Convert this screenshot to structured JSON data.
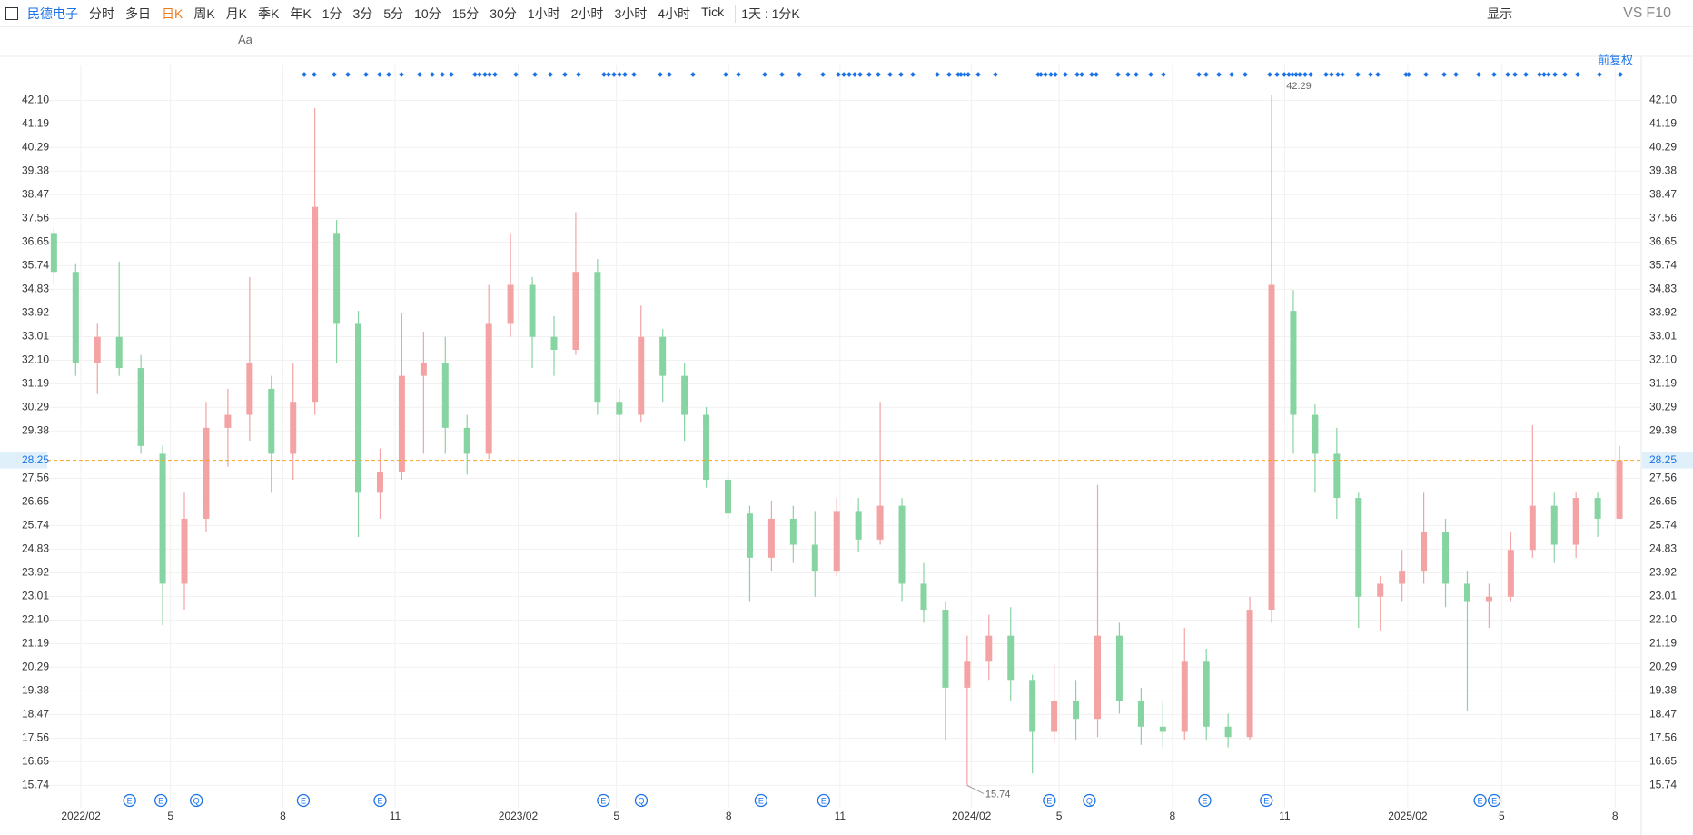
{
  "toolbar": {
    "symbol": "民德电子",
    "tabs": [
      "分时",
      "多日",
      "日K",
      "周K",
      "月K",
      "季K",
      "年K",
      "1分",
      "3分",
      "5分",
      "10分",
      "15分",
      "30分",
      "1小时",
      "2小时",
      "3小时",
      "4小时",
      "Tick"
    ],
    "active_tab": 2,
    "period_selector": "1天 : 1分K",
    "display": "显示",
    "vs": "VS",
    "f10": "F10"
  },
  "drawing_tools": {
    "text_tool": "Aa"
  },
  "chart_data": {
    "type": "candlestick",
    "adjustment": "前复权",
    "categories": [
      null,
      null,
      null,
      null,
      null,
      null,
      null,
      null,
      null,
      null,
      null,
      null,
      null,
      null,
      null,
      null,
      null,
      null,
      null,
      null,
      null,
      null,
      null,
      null,
      null,
      null,
      null,
      null,
      null,
      null,
      null,
      null,
      null,
      null,
      null,
      null,
      null,
      null,
      null,
      null,
      null,
      null,
      null,
      null,
      null,
      null,
      null,
      null,
      null,
      null,
      null,
      null,
      null,
      null,
      null,
      null,
      null,
      null,
      null,
      null,
      null,
      null,
      null,
      null,
      null,
      null,
      null,
      null,
      null,
      null,
      null,
      null,
      null
    ],
    "open": [
      37,
      35.5,
      32,
      33,
      31.8,
      28.5,
      23.5,
      26,
      29.5,
      30,
      31,
      28.5,
      30.5,
      37,
      33.5,
      27,
      27.8,
      31.5,
      32,
      29.5,
      28.5,
      33.5,
      35,
      33,
      32.5,
      35.5,
      30.5,
      30,
      33,
      31.5,
      30,
      27.5,
      26.2,
      24.5,
      26,
      25,
      24,
      26.3,
      25.2,
      26.5,
      23.5,
      22.5,
      19.5,
      20.5,
      21.5,
      19.8,
      17.8,
      19,
      18.3,
      21.5,
      19,
      18,
      17.8,
      20.5,
      18,
      17.6,
      22.5,
      34,
      30,
      28.5,
      26.8,
      23,
      23.5,
      24,
      25.5,
      23.5,
      22.8,
      23,
      24.8,
      26.5,
      25,
      26.8,
      26
    ],
    "high": [
      37.2,
      35.8,
      33.5,
      35.9,
      32.3,
      28.8,
      27,
      30.5,
      31,
      35.3,
      31.5,
      32,
      41.8,
      37.5,
      34,
      28.7,
      33.9,
      33.2,
      33,
      30,
      35,
      37,
      35.3,
      33.8,
      37.8,
      36,
      31,
      34.2,
      33.3,
      32,
      30.3,
      27.8,
      26.5,
      26.7,
      26.5,
      26.3,
      26.8,
      26.8,
      30.5,
      26.8,
      24.3,
      22.8,
      21.5,
      22.3,
      22.6,
      20,
      20.4,
      19.8,
      27.3,
      22,
      19.5,
      19,
      21.8,
      21,
      18.5,
      23,
      42.29,
      34.8,
      30.4,
      29.5,
      27,
      23.8,
      24.8,
      27,
      26,
      24,
      23.5,
      25.5,
      29.6,
      27,
      27,
      27,
      28.8
    ],
    "low": [
      35,
      31.5,
      30.8,
      31.5,
      28.5,
      21.9,
      22.5,
      25.5,
      28,
      29,
      27,
      27.5,
      30,
      32,
      25.3,
      26,
      27.5,
      28.5,
      28.5,
      27.7,
      28.3,
      33,
      31.8,
      31.5,
      32.3,
      30,
      28.2,
      29.7,
      30.5,
      29,
      27.2,
      26,
      22.8,
      24,
      24.3,
      23,
      23.8,
      24.7,
      25,
      22.8,
      22,
      17.5,
      15.74,
      19.8,
      19,
      16.2,
      17.4,
      17.5,
      17.6,
      18.5,
      17.3,
      17.2,
      17.5,
      17.5,
      17.2,
      17.5,
      22,
      28.5,
      27,
      26,
      21.8,
      21.7,
      22.8,
      23.5,
      22.6,
      18.6,
      21.8,
      22.8,
      24.5,
      24.3,
      24.5,
      25.3,
      26
    ],
    "close": [
      35.5,
      32,
      33,
      31.8,
      28.8,
      23.5,
      26,
      29.5,
      30,
      32,
      28.5,
      30.5,
      38,
      33.5,
      27,
      27.8,
      31.5,
      32,
      29.5,
      28.5,
      33.5,
      35,
      33,
      32.5,
      35.5,
      30.5,
      30,
      33,
      31.5,
      30,
      27.5,
      26.2,
      24.5,
      26,
      25,
      24,
      26.3,
      25.2,
      26.5,
      23.5,
      22.5,
      19.5,
      20.5,
      21.5,
      19.8,
      17.8,
      19,
      18.3,
      21.5,
      19,
      18,
      17.8,
      20.5,
      18,
      17.6,
      22.5,
      35,
      30,
      28.5,
      26.8,
      23,
      23.5,
      24,
      25.5,
      23.5,
      22.8,
      23,
      24.8,
      26.5,
      25,
      26.8,
      26,
      28.25
    ],
    "up_color": "#f3a3a3",
    "down_color": "#86d4a2",
    "last_price": 28.25,
    "last_price_color": "#f5a623",
    "ylim": [
      14.88,
      43.48
    ],
    "yticks": [
      15.74,
      16.65,
      17.56,
      18.47,
      19.38,
      20.29,
      21.19,
      {
        "value": 22.1,
        "label": "22.10"
      },
      23.01,
      23.92,
      24.83,
      25.74,
      26.65,
      27.56,
      29.38,
      30.29,
      31.19,
      {
        "value": 32.1,
        "label": "32.10"
      },
      33.01,
      33.92,
      34.83,
      35.74,
      36.65,
      37.56,
      38.47,
      39.38,
      40.29,
      41.19,
      {
        "value": 42.1,
        "label": "42.10"
      }
    ],
    "xlim": [
      -0.5,
      73
    ],
    "xticks": [
      {
        "value": 1.24,
        "label": "2022/02"
      },
      {
        "value": 5.36,
        "label": "5"
      },
      {
        "value": 10.53,
        "label": "8"
      },
      {
        "value": 15.69,
        "label": "11"
      },
      {
        "value": 21.35,
        "label": "2023/02"
      },
      {
        "value": 25.87,
        "label": "5"
      },
      {
        "value": 31.03,
        "label": "8"
      },
      {
        "value": 36.15,
        "label": "11"
      },
      {
        "value": 42.2,
        "label": "2024/02"
      },
      {
        "value": 46.23,
        "label": "5"
      },
      {
        "value": 51.44,
        "label": "8"
      },
      {
        "value": 56.6,
        "label": "11"
      },
      {
        "value": 62.26,
        "label": "2025/02"
      },
      {
        "value": 66.58,
        "label": "5"
      },
      {
        "value": 71.8,
        "label": "8"
      }
    ],
    "max_marker": 42.29,
    "min_marker": 15.74,
    "events": {
      "x": [
        3.48,
        4.92,
        6.55,
        11.47,
        15.0,
        25.27,
        27.01,
        32.52,
        35.4,
        45.78,
        47.62,
        52.93,
        55.76,
        65.59,
        66.24
      ],
      "labels": [
        "E",
        "E",
        "Q",
        "E",
        "E",
        "E",
        "Q",
        "E",
        "E",
        "E",
        "Q",
        "E",
        "E",
        "E",
        "E"
      ]
    },
    "grid": true
  }
}
